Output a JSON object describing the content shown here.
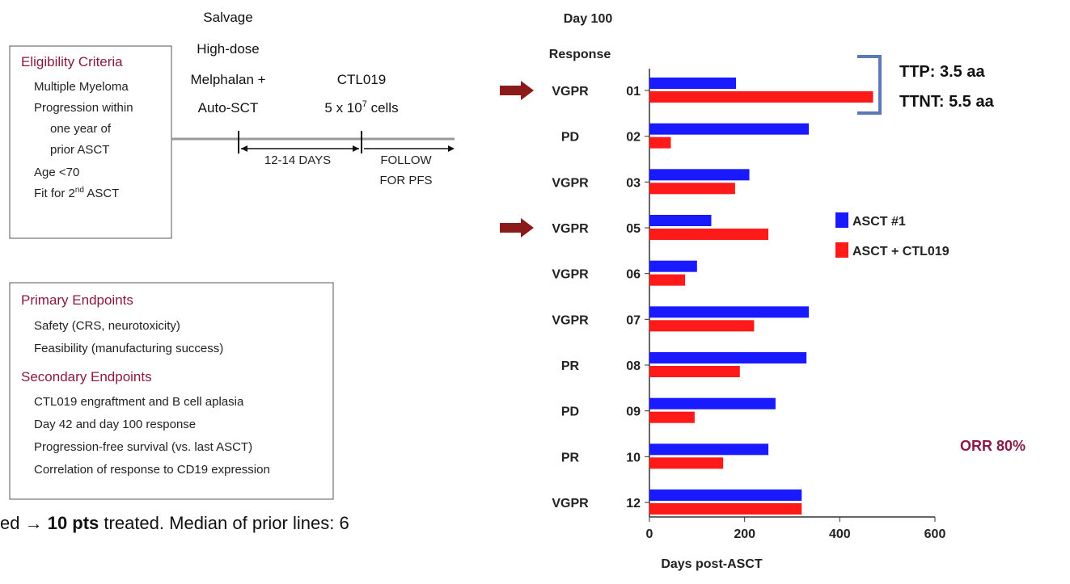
{
  "eligibility": {
    "title": "Eligibility Criteria",
    "items": [
      "Multiple Myeloma",
      "Progression within",
      "one year of",
      "prior ASCT",
      "Age <70"
    ],
    "fit": {
      "text": "Fit for 2",
      "sup": "nd",
      "tail": " ASCT"
    }
  },
  "timeline": {
    "salvage": [
      "Salvage",
      "High-dose",
      "Melphalan +",
      "Auto-SCT"
    ],
    "ctl019": "CTL019",
    "cells": {
      "text": "5 x 10",
      "sup": "7",
      "tail": " cells"
    },
    "interval": "12-14 DAYS",
    "follow": [
      "FOLLOW",
      "FOR PFS"
    ]
  },
  "endpoints": {
    "primary_title": "Primary Endpoints",
    "primary": [
      "Safety (CRS, neurotoxicity)",
      "Feasibility (manufacturing success)"
    ],
    "secondary_title": "Secondary Endpoints",
    "secondary": [
      "CTL019 engraftment and B cell aplasia",
      "Day 42 and day 100 response",
      "Progression-free survival (vs. last ASCT)",
      "Correlation of response to CD19 expression"
    ]
  },
  "footer": [
    "ed → ",
    "10 pts",
    " treated.  Median of prior lines: 6"
  ],
  "chart_data": {
    "type": "bar",
    "orientation": "horizontal",
    "title": [
      "Day 100",
      "Response"
    ],
    "categories": [
      "01",
      "02",
      "03",
      "05",
      "06",
      "07",
      "08",
      "09",
      "10",
      "12"
    ],
    "responses": [
      "VGPR",
      "PD",
      "VGPR",
      "VGPR",
      "VGPR",
      "VGPR",
      "PR",
      "PD",
      "PR",
      "VGPR"
    ],
    "series": [
      {
        "name": "ASCT #1",
        "color": "#1a1aff",
        "values": [
          182,
          335,
          210,
          130,
          100,
          335,
          330,
          265,
          250,
          320
        ]
      },
      {
        "name": "ASCT + CTL019",
        "color": "#ff1a1a",
        "values": [
          470,
          45,
          180,
          250,
          75,
          220,
          190,
          95,
          155,
          320
        ]
      }
    ],
    "xlim": [
      0,
      600
    ],
    "xticks": [
      0,
      200,
      400,
      600
    ],
    "xlabel": "Days post-ASCT",
    "legend": "right",
    "annotations": {
      "bracket": [
        "TTP: 3.5 aa",
        "TTNT: 5.5 aa"
      ],
      "orr": "ORR 80%"
    }
  }
}
